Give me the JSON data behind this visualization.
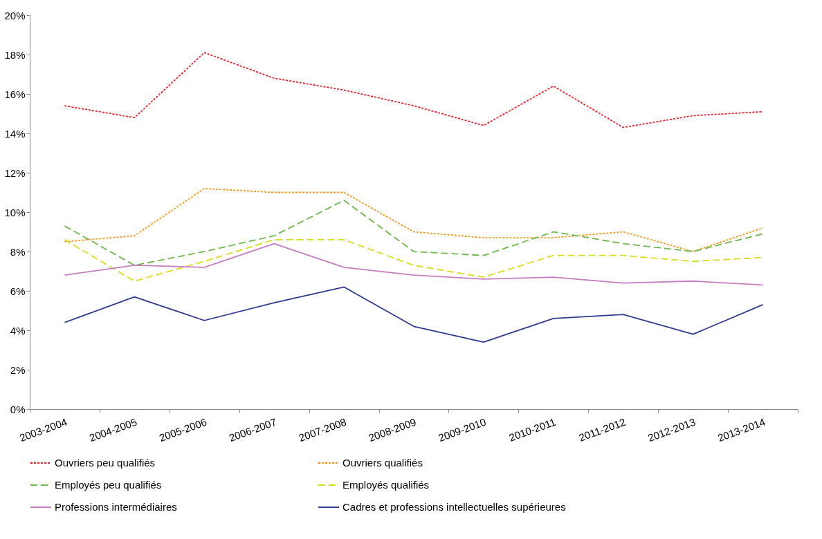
{
  "chart_data": {
    "type": "line",
    "categories": [
      "2003-2004",
      "2004-2005",
      "2005-2006",
      "2006-2007",
      "2007-2008",
      "2008-2009",
      "2009-2010",
      "2010-2011",
      "2011-2012",
      "2012-2013",
      "2013-2014"
    ],
    "series": [
      {
        "name": "Ouvriers peu qualifiés",
        "color": "#e8202a",
        "line_style": "dotted",
        "values": [
          15.4,
          14.8,
          18.1,
          16.8,
          16.2,
          15.4,
          14.4,
          16.4,
          14.3,
          14.9,
          15.1
        ]
      },
      {
        "name": "Ouvriers qualifiés",
        "color": "#f39a1e",
        "line_style": "dotted",
        "values": [
          8.5,
          8.8,
          11.2,
          11.0,
          11.0,
          9.0,
          8.7,
          8.7,
          9.0,
          8.0,
          9.2
        ]
      },
      {
        "name": "Employés peu qualifiés",
        "color": "#6db84a",
        "line_style": "dashed",
        "values": [
          9.3,
          7.3,
          8.0,
          8.8,
          10.6,
          8.0,
          7.8,
          9.0,
          8.4,
          8.0,
          8.9
        ]
      },
      {
        "name": "Employés qualifiés",
        "color": "#d9dc1e",
        "line_style": "dashed",
        "values": [
          8.6,
          6.5,
          7.5,
          8.6,
          8.6,
          7.3,
          6.7,
          7.8,
          7.8,
          7.5,
          7.7
        ]
      },
      {
        "name": "Professions intermédiaires",
        "color": "#c77cc2",
        "line_style": "solid",
        "values": [
          6.8,
          7.3,
          7.2,
          8.4,
          7.2,
          6.8,
          6.6,
          6.7,
          6.4,
          6.5,
          6.3
        ]
      },
      {
        "name": "Cadres et professions intellectuelles supérieures",
        "color": "#2e3a8f",
        "line_style": "solid",
        "values": [
          4.4,
          5.7,
          4.5,
          5.4,
          6.2,
          4.2,
          3.4,
          4.6,
          4.8,
          3.8,
          5.3
        ]
      }
    ],
    "ylim": [
      0,
      20
    ],
    "yticks": [
      {
        "value": 0,
        "label": "0%"
      },
      {
        "value": 2,
        "label": "2%"
      },
      {
        "value": 4,
        "label": "4%"
      },
      {
        "value": 6,
        "label": "6%"
      },
      {
        "value": 8,
        "label": "8%"
      },
      {
        "value": 10,
        "label": "10%"
      },
      {
        "value": 12,
        "label": "12%"
      },
      {
        "value": 14,
        "label": "14%"
      },
      {
        "value": 16,
        "label": "16%"
      },
      {
        "value": 18,
        "label": "18%"
      },
      {
        "value": 20,
        "label": "20%"
      }
    ],
    "grid": false,
    "legend": "bottom"
  }
}
